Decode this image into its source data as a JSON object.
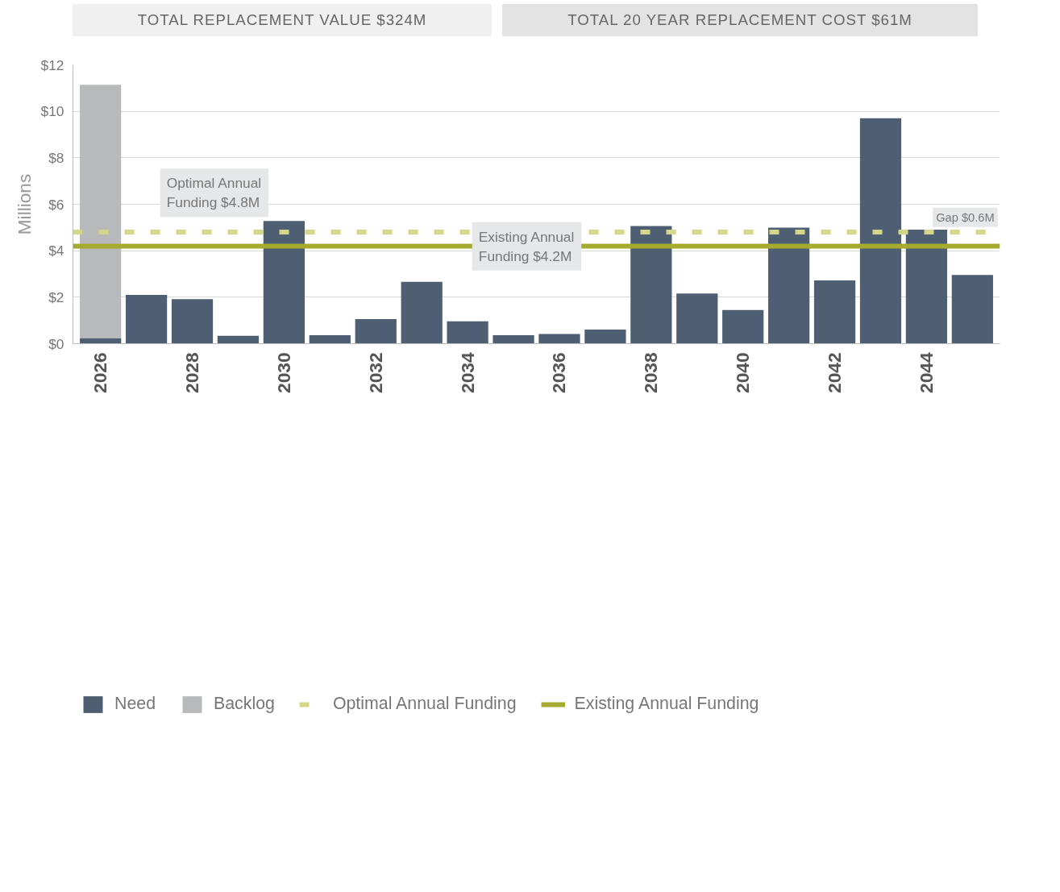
{
  "chart_data": {
    "type": "bar",
    "stacked": true,
    "ylabel": "Millions",
    "annotations": [
      "TOTAL REPLACEMENT VALUE $324M",
      "TOTAL 20 YEAR REPLACEMENT COST $61M",
      "Optimal Annual\nFunding $4.8M",
      "Existing Annual\nFunding $4.2M",
      "Gap $0.6M"
    ],
    "categories": [
      "2026",
      null,
      "2028",
      null,
      "2030",
      null,
      "2032",
      null,
      "2034",
      null,
      "2036",
      null,
      "2038",
      null,
      "2040",
      null,
      "2042",
      null,
      "2044",
      null
    ],
    "series": [
      {
        "name": "Need",
        "color": "#4f5f73",
        "values": [
          0.24,
          2.1,
          1.92,
          0.34,
          5.28,
          0.36,
          1.06,
          2.66,
          0.96,
          0.36,
          0.42,
          0.61,
          5.06,
          2.16,
          1.45,
          4.99,
          2.72,
          9.7,
          4.91,
          2.96
        ]
      },
      {
        "name": "Backlog",
        "color": "#b8b9bb",
        "values": [
          10.9,
          null,
          null,
          null,
          null,
          null,
          null,
          null,
          null,
          null,
          null,
          null,
          null,
          null,
          null,
          null,
          null,
          null,
          null,
          null
        ]
      }
    ],
    "ref_lines": [
      {
        "axis": "y",
        "value": 4.8,
        "label": "Optimal Annual Funding",
        "color": "#d4d68a",
        "line_style": "dashed"
      },
      {
        "axis": "y",
        "value": 4.2,
        "label": "Existing Annual Funding",
        "color": "#a6ab2f",
        "line_style": "solid"
      }
    ],
    "ylim": [
      0,
      12
    ],
    "yticks": [
      {
        "value": 0,
        "label": "$0"
      },
      {
        "value": 2,
        "label": "$2"
      },
      {
        "value": 4,
        "label": "$4"
      },
      {
        "value": 6,
        "label": "$6"
      },
      {
        "value": 8,
        "label": "$8"
      },
      {
        "value": 10,
        "label": "$10"
      },
      {
        "value": 12,
        "label": "$12"
      }
    ],
    "grid": "y",
    "legend": "bottom"
  }
}
